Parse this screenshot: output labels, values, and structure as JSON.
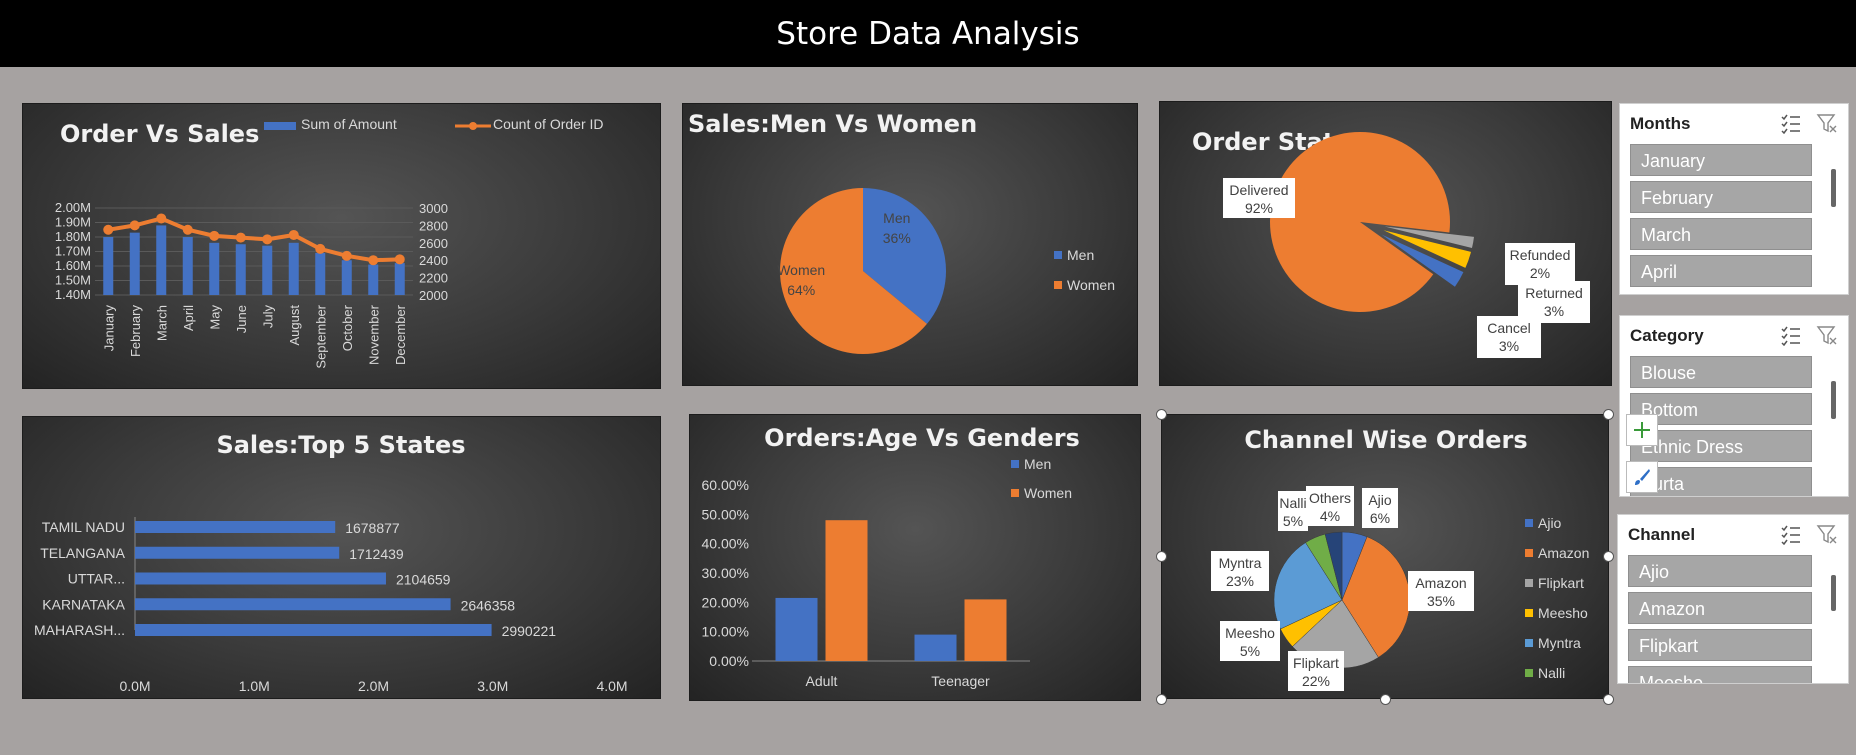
{
  "page_title": "Store Data Analysis",
  "chart_data": [
    {
      "id": "order-vs-sales",
      "type": "bar",
      "title": "Order Vs Sales",
      "categories": [
        "January",
        "February",
        "March",
        "April",
        "May",
        "June",
        "July",
        "August",
        "September",
        "October",
        "November",
        "December"
      ],
      "series": [
        {
          "name": "Sum of Amount",
          "type": "bar",
          "axis": "left",
          "color": "#4472c4",
          "values": [
            1.8,
            1.83,
            1.88,
            1.8,
            1.76,
            1.75,
            1.74,
            1.76,
            1.69,
            1.64,
            1.61,
            1.62
          ]
        },
        {
          "name": "Count of Order ID",
          "type": "line",
          "axis": "right",
          "color": "#ed7d31",
          "values": [
            2750,
            2800,
            2880,
            2750,
            2680,
            2660,
            2640,
            2690,
            2530,
            2450,
            2400,
            2410
          ]
        }
      ],
      "y_left": {
        "ticks": [
          "1.40M",
          "1.50M",
          "1.60M",
          "1.70M",
          "1.80M",
          "1.90M",
          "2.00M"
        ],
        "min": 1.4,
        "max": 2.0
      },
      "y_right": {
        "ticks": [
          "2000",
          "2200",
          "2400",
          "2600",
          "2800",
          "3000"
        ],
        "min": 2000,
        "max": 3000
      },
      "legend": "top-right"
    },
    {
      "id": "sales-men-women",
      "type": "pie",
      "title": "Sales:Men Vs Women",
      "slices": [
        {
          "name": "Men",
          "value": 36,
          "label": "Men\n36%",
          "color": "#4472c4"
        },
        {
          "name": "Women",
          "value": 64,
          "label": "Women\n64%",
          "color": "#ed7d31"
        }
      ],
      "legend": "right"
    },
    {
      "id": "order-status",
      "type": "pie",
      "title": "Order Status",
      "slices": [
        {
          "name": "Delivered",
          "value": 92,
          "pct": "92%",
          "color": "#ed7d31"
        },
        {
          "name": "Refunded",
          "value": 2,
          "pct": "2%",
          "color": "#a5a5a5"
        },
        {
          "name": "Returned",
          "value": 3,
          "pct": "3%",
          "color": "#ffc000"
        },
        {
          "name": "Cancel",
          "value": 3,
          "pct": "3%",
          "color": "#4472c4"
        }
      ]
    },
    {
      "id": "top-5-states",
      "type": "bar",
      "orientation": "horizontal",
      "title": "Sales:Top 5 States",
      "categories": [
        "TAMIL NADU",
        "TELANGANA",
        "UTTAR...",
        "KARNATAKA",
        "MAHARASH..."
      ],
      "values": [
        1678877,
        1712439,
        2104659,
        2646358,
        2990221
      ],
      "value_labels": [
        "1678877",
        "1712439",
        "2104659",
        "2646358",
        "2990221"
      ],
      "x_ticks": [
        "0.0M",
        "1.0M",
        "2.0M",
        "3.0M",
        "4.0M"
      ],
      "xlim": [
        0,
        4000000
      ],
      "color": "#4472c4"
    },
    {
      "id": "age-vs-genders",
      "type": "bar",
      "title": "Orders:Age Vs Genders",
      "categories": [
        "Adult",
        "Teenager"
      ],
      "series": [
        {
          "name": "Men",
          "values": [
            21.5,
            9.0
          ],
          "color": "#4472c4"
        },
        {
          "name": "Women",
          "values": [
            48.0,
            21.0
          ],
          "color": "#ed7d31"
        }
      ],
      "y_ticks": [
        "0.00%",
        "10.00%",
        "20.00%",
        "30.00%",
        "40.00%",
        "50.00%",
        "60.00%"
      ],
      "ylim": [
        0,
        60
      ],
      "legend": "top-right"
    },
    {
      "id": "channel-wise-orders",
      "type": "pie",
      "title": "Channel Wise Orders",
      "slices": [
        {
          "name": "Ajio",
          "value": 6,
          "pct": "6%",
          "color": "#4472c4"
        },
        {
          "name": "Amazon",
          "value": 35,
          "pct": "35%",
          "color": "#ed7d31"
        },
        {
          "name": "Flipkart",
          "value": 22,
          "pct": "22%",
          "color": "#a5a5a5"
        },
        {
          "name": "Meesho",
          "value": 5,
          "pct": "5%",
          "color": "#ffc000"
        },
        {
          "name": "Myntra",
          "value": 23,
          "pct": "23%",
          "color": "#5b9bd5"
        },
        {
          "name": "Nalli",
          "value": 5,
          "pct": "5%",
          "color": "#70ad47"
        },
        {
          "name": "Others",
          "value": 4,
          "pct": "4%",
          "color": "#264478"
        }
      ],
      "legend_entries": [
        "Ajio",
        "Amazon",
        "Flipkart",
        "Meesho",
        "Myntra",
        "Nalli"
      ],
      "legend": "right"
    }
  ],
  "slicers": {
    "months": {
      "title": "Months",
      "items": [
        "January",
        "February",
        "March",
        "April"
      ]
    },
    "category": {
      "title": "Category",
      "items": [
        "Blouse",
        "Bottom",
        "Ethnic Dress",
        "Kurta"
      ]
    },
    "channel": {
      "title": "Channel",
      "items": [
        "Ajio",
        "Amazon",
        "Flipkart",
        "Meesho"
      ]
    }
  }
}
